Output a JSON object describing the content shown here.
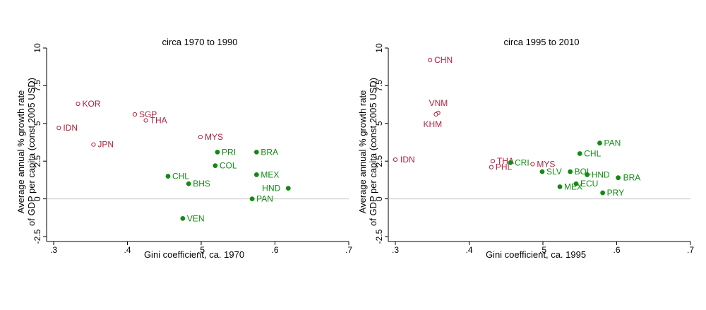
{
  "chart_data": [
    {
      "type": "scatter",
      "title": "circa 1970 to 1990",
      "xlabel": "Gini coefficient, ca. 1970",
      "ylabel_lines": [
        "Average annual % growth rate",
        "of GDP per capita (const 2005 USD)"
      ],
      "xlim": [
        0.3,
        0.7
      ],
      "ylim": [
        -2.5,
        10
      ],
      "xticks": [
        ".3",
        ".4",
        ".5",
        ".6",
        ".7"
      ],
      "xtick_values": [
        0.3,
        0.4,
        0.5,
        0.6,
        0.7
      ],
      "yticks": [
        "-2.5",
        "0",
        "2.5",
        "5",
        "7.5",
        "10"
      ],
      "ytick_values": [
        -2.5,
        0,
        2.5,
        5,
        7.5,
        10
      ],
      "reference_line_y": 0,
      "grid": false,
      "colors": {
        "hollow": "#b0223f",
        "filled": "#138a13",
        "refline": "#c8c8c8"
      },
      "points": [
        {
          "label": "KOR",
          "x": 0.333,
          "y": 6.3,
          "style": "hollow"
        },
        {
          "label": "IDN",
          "x": 0.307,
          "y": 4.7,
          "style": "hollow"
        },
        {
          "label": "SGP",
          "x": 0.41,
          "y": 5.6,
          "style": "hollow"
        },
        {
          "label": "THA",
          "x": 0.425,
          "y": 5.2,
          "style": "hollow"
        },
        {
          "label": "JPN",
          "x": 0.354,
          "y": 3.6,
          "style": "hollow"
        },
        {
          "label": "MYS",
          "x": 0.499,
          "y": 4.1,
          "style": "hollow"
        },
        {
          "label": "PRI",
          "x": 0.522,
          "y": 3.1,
          "style": "filled"
        },
        {
          "label": "BRA",
          "x": 0.575,
          "y": 3.1,
          "style": "filled"
        },
        {
          "label": "COL",
          "x": 0.519,
          "y": 2.2,
          "style": "filled"
        },
        {
          "label": "CHL",
          "x": 0.455,
          "y": 1.5,
          "style": "filled"
        },
        {
          "label": "MEX",
          "x": 0.575,
          "y": 1.6,
          "style": "filled"
        },
        {
          "label": "BHS",
          "x": 0.483,
          "y": 1.0,
          "style": "filled"
        },
        {
          "label": "HND",
          "x": 0.618,
          "y": 0.7,
          "style": "filled"
        },
        {
          "label": "PAN",
          "x": 0.569,
          "y": 0.0,
          "style": "filled"
        },
        {
          "label": "VEN",
          "x": 0.475,
          "y": -1.3,
          "style": "filled"
        }
      ]
    },
    {
      "type": "scatter",
      "title": "circa 1995 to 2010",
      "xlabel": "Gini coefficient, ca. 1995",
      "ylabel_lines": [
        "Average annual % growth rate",
        "of GDP per capita (const 2005 USD)"
      ],
      "xlim": [
        0.3,
        0.7
      ],
      "ylim": [
        -2.5,
        10
      ],
      "xticks": [
        ".3",
        ".4",
        ".5",
        ".6",
        ".7"
      ],
      "xtick_values": [
        0.3,
        0.4,
        0.5,
        0.6,
        0.7
      ],
      "yticks": [
        "-2.5",
        "0",
        "2.5",
        "5",
        "7.5",
        "10"
      ],
      "ytick_values": [
        -2.5,
        0,
        2.5,
        5,
        7.5,
        10
      ],
      "reference_line_y": 0,
      "grid": false,
      "colors": {
        "hollow": "#b0223f",
        "filled": "#138a13",
        "refline": "#c8c8c8"
      },
      "points": [
        {
          "label": "CHN",
          "x": 0.347,
          "y": 9.2,
          "style": "hollow"
        },
        {
          "label": "VNM",
          "x": 0.358,
          "y": 5.7,
          "style": "hollow"
        },
        {
          "label": "KHM",
          "x": 0.355,
          "y": 5.6,
          "style": "hollow"
        },
        {
          "label": "IDN",
          "x": 0.3,
          "y": 2.6,
          "style": "hollow"
        },
        {
          "label": "THA",
          "x": 0.432,
          "y": 2.5,
          "style": "hollow"
        },
        {
          "label": "PHL",
          "x": 0.43,
          "y": 2.1,
          "style": "hollow"
        },
        {
          "label": "MYS",
          "x": 0.486,
          "y": 2.3,
          "style": "hollow"
        },
        {
          "label": "CRI",
          "x": 0.456,
          "y": 2.4,
          "style": "filled"
        },
        {
          "label": "SLV",
          "x": 0.499,
          "y": 1.8,
          "style": "filled"
        },
        {
          "label": "PAN",
          "x": 0.577,
          "y": 3.7,
          "style": "filled"
        },
        {
          "label": "CHL",
          "x": 0.55,
          "y": 3.0,
          "style": "filled"
        },
        {
          "label": "BOL",
          "x": 0.537,
          "y": 1.8,
          "style": "filled"
        },
        {
          "label": "HND",
          "x": 0.56,
          "y": 1.6,
          "style": "filled"
        },
        {
          "label": "BRA",
          "x": 0.602,
          "y": 1.4,
          "style": "filled"
        },
        {
          "label": "ECU",
          "x": 0.545,
          "y": 1.0,
          "style": "filled"
        },
        {
          "label": "MEX",
          "x": 0.523,
          "y": 0.8,
          "style": "filled"
        },
        {
          "label": "PRY",
          "x": 0.581,
          "y": 0.4,
          "style": "filled"
        }
      ]
    }
  ]
}
